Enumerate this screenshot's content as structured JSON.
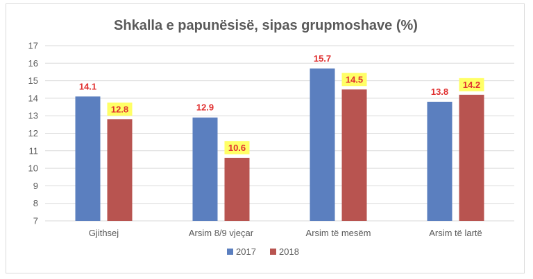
{
  "chart_data": {
    "type": "bar",
    "title": "Shkalla e papunësisë, sipas grupmoshave (%)",
    "categories": [
      "Gjithsej",
      "Arsim 8/9 vjeçar",
      "Arsim të mesëm",
      "Arsim të lartë"
    ],
    "series": [
      {
        "name": "2017",
        "color": "#5b7fbf",
        "values": [
          14.1,
          12.9,
          15.7,
          13.8
        ],
        "label_highlight": false
      },
      {
        "name": "2018",
        "color": "#b85450",
        "values": [
          12.8,
          10.6,
          14.5,
          14.2
        ],
        "label_highlight": true
      }
    ],
    "data_label_color": "#e03030",
    "data_label_highlight_color": "#ffff66",
    "ylim": [
      7,
      17
    ],
    "yticks": [
      7,
      8,
      9,
      10,
      11,
      12,
      13,
      14,
      15,
      16,
      17
    ],
    "grid": true,
    "legend_position": "bottom"
  }
}
